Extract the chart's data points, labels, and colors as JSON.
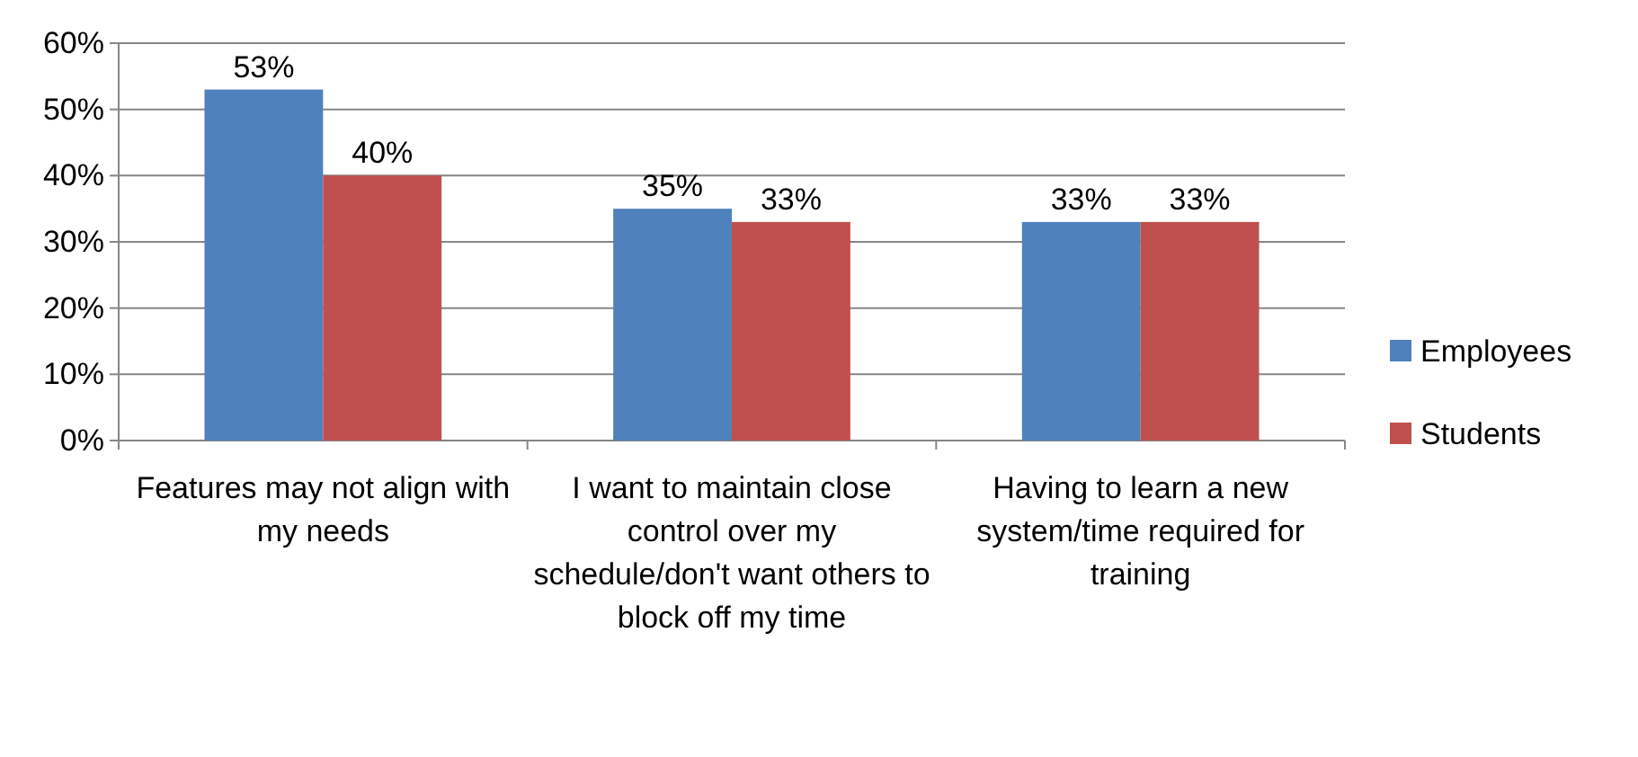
{
  "chart_data": {
    "type": "bar",
    "categories": [
      "Features may not align with my needs",
      "I want to maintain close control over my schedule/don't want others to block off my time",
      "Having to learn a new system/time required for training"
    ],
    "series": [
      {
        "name": "Employees",
        "color": "#4f81bd",
        "values": [
          53,
          35,
          33
        ],
        "value_labels": [
          "53%",
          "35%",
          "33%"
        ]
      },
      {
        "name": "Students",
        "color": "#c0504d",
        "values": [
          40,
          33,
          33
        ],
        "value_labels": [
          "40%",
          "33%",
          "33%"
        ]
      }
    ],
    "ylim": [
      0,
      60
    ],
    "yticks": [
      {
        "value": 0,
        "label": "0%"
      },
      {
        "value": 10,
        "label": "10%"
      },
      {
        "value": 20,
        "label": "20%"
      },
      {
        "value": 30,
        "label": "30%"
      },
      {
        "value": 40,
        "label": "40%"
      },
      {
        "value": 50,
        "label": "50%"
      },
      {
        "value": 60,
        "label": "60%"
      }
    ],
    "grid": "y",
    "legend": "right"
  }
}
